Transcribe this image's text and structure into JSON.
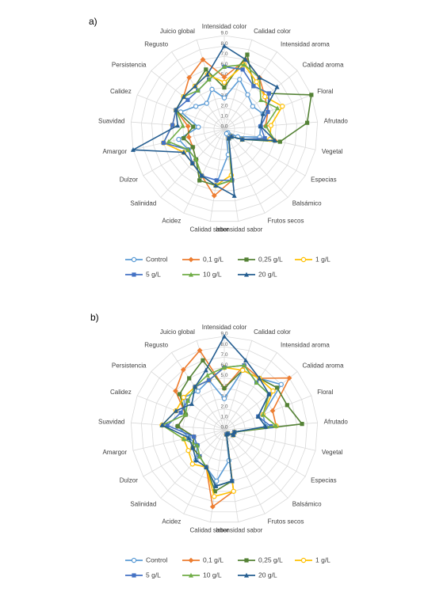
{
  "chart_data": [
    {
      "type": "radar",
      "title": "a)",
      "categories": [
        "Intensidad color",
        "Calidad color",
        "Intensidad aroma",
        "Calidad aroma",
        "Floral",
        "Afrutado",
        "Vegetal",
        "Especias",
        "Balsámico",
        "Frutos secos",
        "Intensidad sabor",
        "Calidad sabor",
        "Acidez",
        "Salinidad",
        "Dulzor",
        "Amargor",
        "Suavidad",
        "Calidez",
        "Persistencia",
        "Regusto",
        "Juicio global"
      ],
      "rlim": [
        0,
        9
      ],
      "rticks": [
        {
          "value": 0,
          "label": "0.0"
        },
        {
          "value": 1,
          "label": "1.0"
        },
        {
          "value": 2,
          "label": "2.0"
        },
        {
          "value": 3,
          "label": "3.0"
        },
        {
          "value": 4,
          "label": "4.0"
        },
        {
          "value": 5,
          "label": "5.0"
        },
        {
          "value": 6,
          "label": "6.0"
        },
        {
          "value": 7,
          "label": "7.0"
        },
        {
          "value": 8,
          "label": "8.0"
        },
        {
          "value": 9,
          "label": "9.0"
        }
      ],
      "grid": true,
      "series": [
        {
          "name": "Control",
          "color": "#5b9bd5",
          "marker": "circle",
          "values": [
            3,
            5,
            4,
            3.5,
            4,
            3.5,
            3.5,
            1.5,
            0.5,
            0.5,
            2.5,
            5.5,
            5,
            4,
            4,
            4.5,
            2.5,
            4.5,
            3.5,
            3,
            4
          ]
        },
        {
          "name": "0,1 g/L",
          "color": "#ed7d31",
          "marker": "diamond",
          "values": [
            5,
            7,
            6,
            5,
            4.5,
            4,
            5,
            2,
            1,
            1,
            5,
            6.5,
            5,
            4,
            3.5,
            3.5,
            3.5,
            5,
            5,
            6,
            7
          ]
        },
        {
          "name": "0,25 g/L",
          "color": "#548235",
          "marker": "square",
          "values": [
            4,
            7.5,
            5,
            5.5,
            9,
            8,
            5.5,
            2,
            1,
            1,
            5,
            5.5,
            5.5,
            4,
            3.5,
            4,
            3,
            5,
            5,
            5,
            6
          ]
        },
        {
          "name": "1 g/L",
          "color": "#ffc000",
          "marker": "circle",
          "values": [
            4.5,
            6.5,
            5.5,
            5,
            6,
            4.5,
            4.5,
            2,
            1,
            1,
            4.5,
            5.5,
            5,
            4.5,
            4.5,
            6,
            5,
            5,
            5,
            5,
            5.5
          ]
        },
        {
          "name": "5 g/L",
          "color": "#4472c4",
          "marker": "square",
          "values": [
            6,
            6,
            5,
            5.5,
            4.5,
            3.5,
            4,
            2,
            1,
            1,
            5,
            5,
            5,
            4.5,
            4,
            6,
            5,
            5,
            4.5,
            4.5,
            5
          ]
        },
        {
          "name": "10 g/L",
          "color": "#70ad47",
          "marker": "triangle",
          "values": [
            6,
            6.5,
            6,
            4.5,
            5.5,
            4,
            5,
            2,
            1,
            1,
            5,
            5.5,
            5,
            4,
            4,
            5.5,
            4,
            5,
            5,
            4.5,
            5
          ]
        },
        {
          "name": "20 g/L",
          "color": "#255e91",
          "marker": "triangle",
          "values": [
            8,
            7,
            6,
            6.5,
            4,
            3.5,
            5,
            2,
            1,
            1,
            6.5,
            5.5,
            5,
            4.5,
            4.5,
            9,
            4.5,
            5,
            5,
            5,
            5.5
          ]
        }
      ]
    },
    {
      "type": "radar",
      "title": "b)",
      "categories": [
        "Intensidad color",
        "Calidad color",
        "Intensidad aroma",
        "Calidad aroma",
        "Floral",
        "Afrutado",
        "Vegetal",
        "Especias",
        "Balsámico",
        "Frutos secos",
        "Intensidad sabor",
        "Calidad sabor",
        "Acidez",
        "Salinidad",
        "Dulzor",
        "Amargor",
        "Suavidad",
        "Calidez",
        "Persistencia",
        "Regusto",
        "Juicio global"
      ],
      "rlim": [
        0,
        9
      ],
      "rticks": [
        {
          "value": 0,
          "label": "0.0"
        },
        {
          "value": 1,
          "label": "1.0"
        },
        {
          "value": 2,
          "label": "2.0"
        },
        {
          "value": 3,
          "label": "3.0"
        },
        {
          "value": 4,
          "label": "4.0"
        },
        {
          "value": 5,
          "label": "5.0"
        },
        {
          "value": 6,
          "label": "6.0"
        },
        {
          "value": 7,
          "label": "7.0"
        },
        {
          "value": 8,
          "label": "8.0"
        },
        {
          "value": 9,
          "label": "9.0"
        }
      ],
      "grid": true,
      "series": [
        {
          "name": "Control",
          "color": "#5b9bd5",
          "marker": "circle",
          "values": [
            3,
            6,
            6,
            7,
            4,
            4,
            1,
            1,
            0.5,
            0.5,
            3,
            5,
            4,
            4,
            3,
            3.5,
            4.5,
            4,
            5,
            4.5,
            5
          ]
        },
        {
          "name": "0,1 g/L",
          "color": "#ed7d31",
          "marker": "diamond",
          "values": [
            4,
            6.5,
            6,
            8,
            5,
            5,
            1,
            1,
            0.5,
            0.5,
            6,
            7.5,
            4,
            3.5,
            3.5,
            3,
            4.5,
            4,
            6,
            7,
            8
          ]
        },
        {
          "name": "0,25 g/L",
          "color": "#548235",
          "marker": "square",
          "values": [
            4,
            6,
            6,
            6.5,
            6.5,
            7.5,
            1,
            1,
            0.5,
            0.5,
            5,
            6,
            4,
            3.5,
            3.5,
            3,
            4.5,
            4,
            5.5,
            6,
            7
          ]
        },
        {
          "name": "1 g/L",
          "color": "#ffc000",
          "marker": "circle",
          "values": [
            6,
            6,
            6,
            6,
            4,
            5,
            1,
            1,
            0.5,
            0.5,
            6,
            6.5,
            4,
            4.5,
            4,
            4,
            6,
            5,
            5,
            5,
            5
          ]
        },
        {
          "name": "5 g/L",
          "color": "#4472c4",
          "marker": "square",
          "values": [
            6,
            6.5,
            5.5,
            5.5,
            3.5,
            4.5,
            1,
            1,
            0.5,
            0.5,
            5,
            5.5,
            4,
            3.5,
            3,
            3,
            5.5,
            4.5,
            4.5,
            5,
            5
          ]
        },
        {
          "name": "10 g/L",
          "color": "#70ad47",
          "marker": "triangle",
          "values": [
            6,
            6.5,
            5.5,
            5.5,
            4,
            5,
            1,
            1,
            0.5,
            0.5,
            5,
            5.5,
            4,
            3.5,
            3,
            4,
            6,
            4,
            4.5,
            5,
            5.5
          ]
        },
        {
          "name": "20 g/L",
          "color": "#255e91",
          "marker": "triangle",
          "values": [
            9,
            7,
            6,
            5.5,
            3.5,
            4,
            1,
            1,
            0.5,
            0.5,
            5,
            5.5,
            4,
            4,
            3.5,
            3.5,
            6,
            5,
            4,
            5,
            6
          ]
        }
      ]
    }
  ]
}
